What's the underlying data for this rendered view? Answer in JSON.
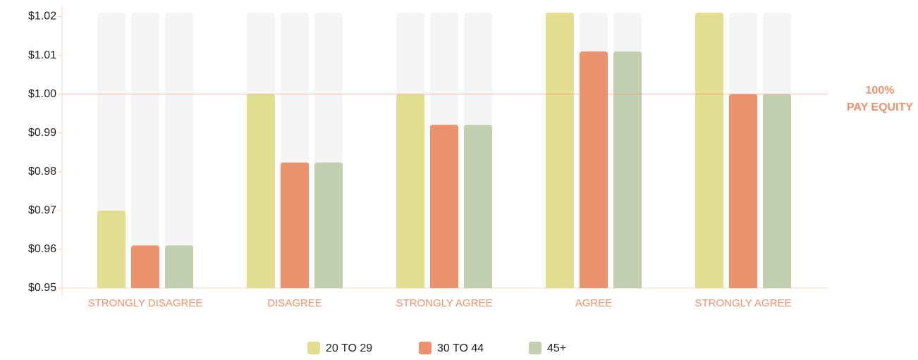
{
  "chart_data": {
    "type": "bar",
    "categories": [
      "STRONGLY DISAGREE",
      "DISAGREE",
      "STRONGLY AGREE",
      "AGREE",
      "STRONGLY AGREE"
    ],
    "series": [
      {
        "name": "20 TO 29",
        "color": "#e3dd90",
        "values": [
          0.97,
          1.0,
          1.0,
          1.021,
          1.021
        ]
      },
      {
        "name": "30 TO 44",
        "color": "#eb916b",
        "values": [
          0.961,
          0.9824,
          0.9921,
          1.011,
          1.0
        ]
      },
      {
        "name": "45+",
        "color": "#c1cfb0",
        "values": [
          0.961,
          0.9824,
          0.9921,
          1.011,
          1.0
        ]
      }
    ],
    "ylim": [
      0.95,
      1.021
    ],
    "yticks": [
      {
        "value": 0.95,
        "label": "$0.95"
      },
      {
        "value": 0.96,
        "label": "$0.96"
      },
      {
        "value": 0.97,
        "label": "$0.97"
      },
      {
        "value": 0.98,
        "label": "$0.98"
      },
      {
        "value": 0.99,
        "label": "$0.99"
      },
      {
        "value": 1.0,
        "label": "$1.00"
      },
      {
        "value": 1.01,
        "label": "$1.01"
      },
      {
        "value": 1.02,
        "label": "$1.02"
      }
    ],
    "reference_line": {
      "value": 1.0,
      "label": [
        "100%",
        "PAY EQUITY"
      ],
      "color": "#eb916b"
    },
    "legend": "bottom"
  }
}
